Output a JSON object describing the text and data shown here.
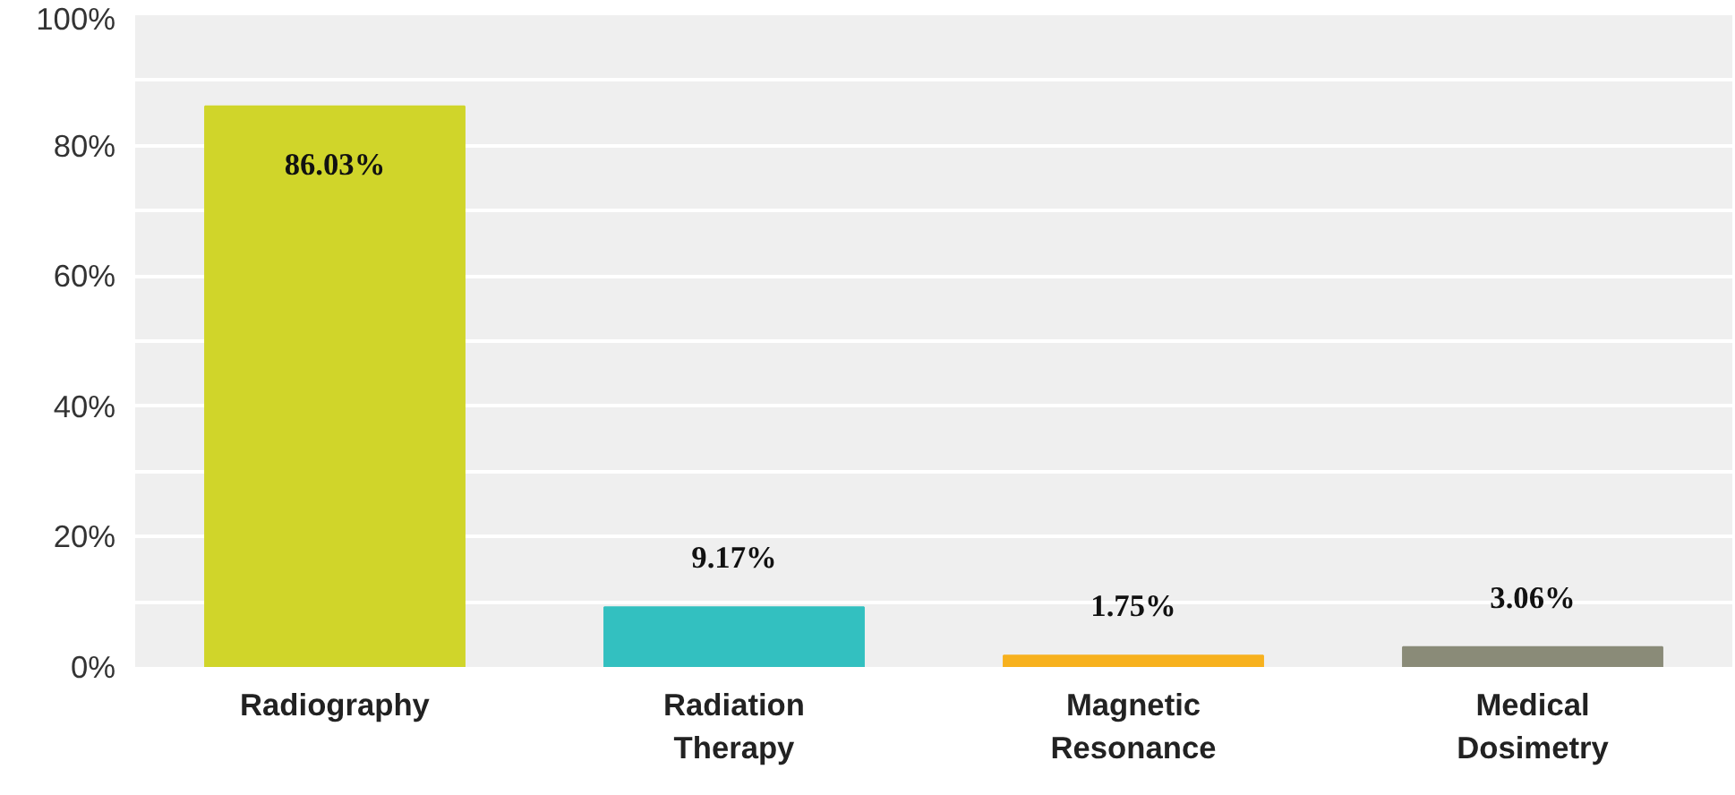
{
  "chart_data": {
    "type": "bar",
    "categories": [
      "Radiography",
      "Radiation Therapy",
      "Magnetic Resonance",
      "Medical Dosimetry"
    ],
    "values": [
      86.03,
      9.17,
      1.75,
      3.06
    ],
    "colors": [
      "#d0d52a",
      "#33c0c0",
      "#f7b11e",
      "#8a8b78"
    ],
    "value_labels": [
      "86.03%",
      "9.17%",
      "1.75%",
      "3.06%"
    ],
    "ylim": [
      0,
      100
    ],
    "yticks": [
      {
        "value": 0,
        "label": "0%"
      },
      {
        "value": 10,
        "label": null
      },
      {
        "value": 20,
        "label": "20%"
      },
      {
        "value": 30,
        "label": null
      },
      {
        "value": 40,
        "label": "40%"
      },
      {
        "value": 50,
        "label": null
      },
      {
        "value": 60,
        "label": "60%"
      },
      {
        "value": 70,
        "label": null
      },
      {
        "value": 80,
        "label": "80%"
      },
      {
        "value": 90,
        "label": null
      },
      {
        "value": 100,
        "label": "100%"
      }
    ],
    "grid": "y"
  }
}
